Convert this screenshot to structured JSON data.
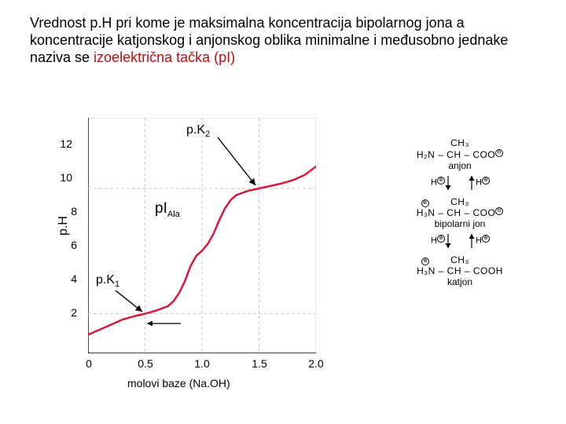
{
  "caption": {
    "text_before": "Vrednost p.H pri kome je maksimalna koncentracija bipolarnog jona a koncentracije katjonskog i anjonskog oblika minimalne i međusobno jednake naziva se ",
    "highlight": "izoelektrična tačka (pI)",
    "text_color": "#000000",
    "highlight_color": "#c40b0b",
    "fontsize": 18
  },
  "chart": {
    "type": "line",
    "background_color": "#ffffff",
    "axis_color": "#000000",
    "grid_color": "#c9c9c9",
    "frame_color": "#d4d4d4",
    "curve_color": "#d6183a",
    "curve_width": 2.5,
    "arrow_color": "#000000",
    "xlim": [
      0,
      2.0
    ],
    "ylim": [
      0,
      14
    ],
    "xticks": [
      0,
      0.5,
      1.0,
      1.5,
      2.0
    ],
    "yticks": [
      2,
      4,
      6,
      8,
      10,
      12
    ],
    "xtick_labels": [
      "0",
      "0.5",
      "1.0",
      "1.5",
      "2.0"
    ],
    "ytick_labels": [
      "2",
      "4",
      "6",
      "8",
      "10",
      "12"
    ],
    "xlabel": "molovi baze (Na.OH)",
    "ylabel": "p.H",
    "label_fontsize": 16,
    "tick_fontsize": 14,
    "series": {
      "x": [
        0.0,
        0.1,
        0.2,
        0.3,
        0.4,
        0.5,
        0.6,
        0.7,
        0.75,
        0.8,
        0.85,
        0.9,
        0.95,
        1.0,
        1.05,
        1.1,
        1.15,
        1.2,
        1.25,
        1.3,
        1.4,
        1.5,
        1.6,
        1.7,
        1.8,
        1.9,
        2.0
      ],
      "y": [
        1.1,
        1.4,
        1.7,
        2.0,
        2.2,
        2.35,
        2.55,
        2.8,
        3.1,
        3.6,
        4.3,
        5.2,
        5.8,
        6.1,
        6.5,
        7.1,
        7.9,
        8.6,
        9.1,
        9.4,
        9.65,
        9.8,
        9.95,
        10.1,
        10.3,
        10.6,
        11.1
      ]
    },
    "dashed_lines": {
      "pk1_y": 2.35,
      "pk2_y": 9.8,
      "pk1_x": 0.5,
      "pI_x": 1.0,
      "pk2_x": 1.5
    },
    "annotations": {
      "pK1_label": "p.K",
      "pK1_sub": "1",
      "pK2_label": "p.K",
      "pK2_sub": "2",
      "pI_label": "pI",
      "pI_sub": "Ala"
    }
  },
  "legend": {
    "anion": {
      "line1": "CH₃",
      "line2": "H₂N – CH – COO",
      "charge": "⊖",
      "label": "anjon"
    },
    "zwitter": {
      "line1": "CH₃",
      "line2_prefix": "H₃N – CH – COO",
      "n_charge": "⊕",
      "o_charge": "⊖",
      "label": "bipolarni jon"
    },
    "cation": {
      "line1": "CH₃",
      "line2_prefix": "H₃N – CH – COOH",
      "n_charge": "⊕",
      "label": "katjon"
    },
    "proton": "H",
    "proton_charge": "⊕"
  }
}
